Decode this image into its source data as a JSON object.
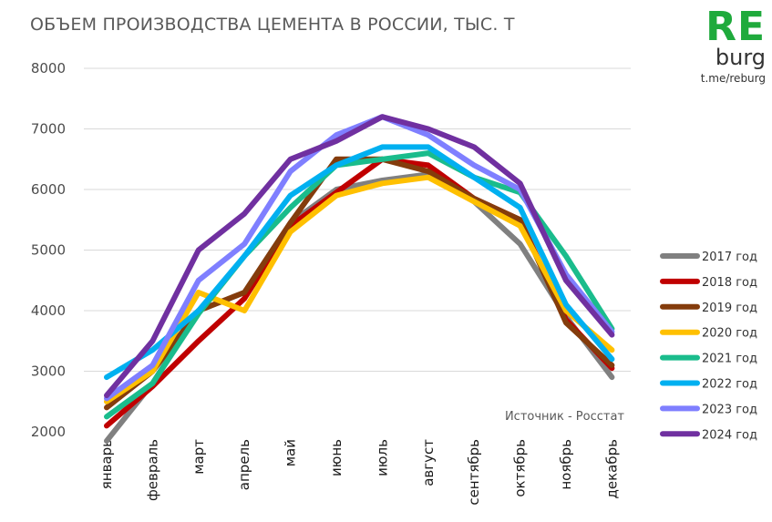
{
  "header": {
    "title": "ОБЪЕМ ПРОИЗВОДСТВА ЦЕМЕНТА В РОССИИ, ТЫС. Т"
  },
  "logo": {
    "main": "RE",
    "sub": "burg",
    "link": "t.me/reburg",
    "color": "#1faa3c"
  },
  "chart_data": {
    "type": "line",
    "title": "ОБЪЕМ ПРОИЗВОДСТВА ЦЕМЕНТА В РОССИИ, ТЫС. Т",
    "xlabel": "",
    "ylabel": "",
    "categories": [
      "январь",
      "февраль",
      "март",
      "апрель",
      "май",
      "июнь",
      "июль",
      "август",
      "сентябрь",
      "октябрь",
      "ноябрь",
      "декабрь"
    ],
    "ylim": [
      2000,
      8000
    ],
    "yticks": [
      2000,
      3000,
      4000,
      5000,
      6000,
      7000,
      8000
    ],
    "grid": true,
    "legend_position": "right",
    "source": "Источник - Росстат",
    "series": [
      {
        "name": "2017 год",
        "color": "#808080",
        "values": [
          1850,
          2800,
          4000,
          4300,
          5450,
          6000,
          6150,
          6250,
          5800,
          5100,
          3900,
          2900
        ]
      },
      {
        "name": "2018 год",
        "color": "#c00000",
        "values": [
          2100,
          2750,
          3500,
          4200,
          5400,
          5950,
          6500,
          6400,
          5850,
          5500,
          3850,
          3050
        ]
      },
      {
        "name": "2019 год",
        "color": "#843c0c",
        "values": [
          2400,
          3000,
          4000,
          4300,
          5450,
          6500,
          6500,
          6300,
          5850,
          5500,
          3800,
          3100
        ]
      },
      {
        "name": "2020 год",
        "color": "#ffc000",
        "values": [
          2500,
          3000,
          4300,
          4000,
          5300,
          5900,
          6100,
          6200,
          5800,
          5400,
          4000,
          3350
        ]
      },
      {
        "name": "2021 год",
        "color": "#1abc8c",
        "values": [
          2250,
          2800,
          3950,
          4900,
          5700,
          6400,
          6500,
          6600,
          6200,
          5950,
          4900,
          3700
        ]
      },
      {
        "name": "2022 год",
        "color": "#00b0f0",
        "values": [
          2900,
          3350,
          4000,
          4900,
          5900,
          6400,
          6700,
          6700,
          6200,
          5700,
          4100,
          3200
        ]
      },
      {
        "name": "2023 год",
        "color": "#7f7fff",
        "values": [
          2550,
          3100,
          4500,
          5100,
          6300,
          6900,
          7200,
          6900,
          6400,
          6000,
          4600,
          3650
        ]
      },
      {
        "name": "2024 год",
        "color": "#7030a0",
        "values": [
          2600,
          3500,
          5000,
          5600,
          6500,
          6800,
          7200,
          7000,
          6700,
          6100,
          4500,
          3600
        ]
      }
    ]
  }
}
